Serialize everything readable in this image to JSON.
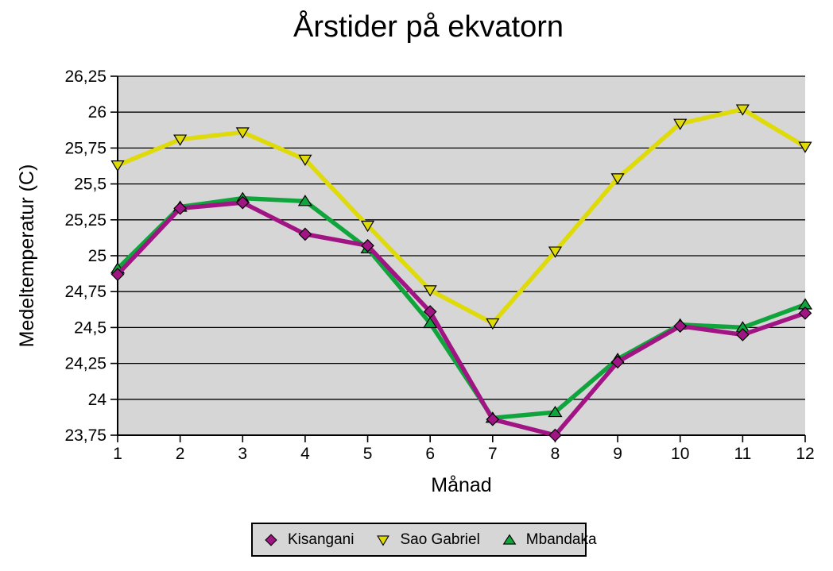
{
  "chart_data": {
    "type": "line",
    "title": "Årstider på ekvatorn",
    "xlabel": "Månad",
    "ylabel": "Medeltemperatur (C)",
    "x": [
      1,
      2,
      3,
      4,
      5,
      6,
      7,
      8,
      9,
      10,
      11,
      12
    ],
    "x_tick_labels": [
      "1",
      "2",
      "3",
      "4",
      "5",
      "6",
      "7",
      "8",
      "9",
      "10",
      "11",
      "12"
    ],
    "ylim": [
      23.75,
      26.25
    ],
    "y_tick_values": [
      26.25,
      26.0,
      25.75,
      25.5,
      25.25,
      25.0,
      24.75,
      24.5,
      24.25,
      24.0,
      23.75
    ],
    "y_tick_labels": [
      "26,25",
      "26",
      "25,75",
      "25,5",
      "25,25",
      "25",
      "24,75",
      "24,5",
      "24,25",
      "24",
      "23,75"
    ],
    "grid": "horizontal",
    "plot_background_color": "#D6D6D6",
    "gridline_color": "#000000",
    "axis_color": "#000000",
    "legend_position": "bottom",
    "series": [
      {
        "name": "Kisangani",
        "color": "#A01484",
        "marker": "diamond",
        "values": [
          24.87,
          25.33,
          25.37,
          25.15,
          25.07,
          24.61,
          23.86,
          23.75,
          24.26,
          24.51,
          24.45,
          24.6
        ]
      },
      {
        "name": "Sao Gabriel",
        "color": "#DFDA0A",
        "marker": "triangle-down",
        "values": [
          25.63,
          25.81,
          25.86,
          25.67,
          25.21,
          24.76,
          24.53,
          25.03,
          25.54,
          25.92,
          26.02,
          25.76
        ]
      },
      {
        "name": "Mbandaka",
        "color": "#0FA53C",
        "marker": "triangle-up",
        "values": [
          24.91,
          25.34,
          25.4,
          25.38,
          25.05,
          24.53,
          23.87,
          23.91,
          24.28,
          24.52,
          24.5,
          24.66
        ]
      }
    ],
    "draw_order_indexes": [
      2,
      1,
      0
    ]
  }
}
